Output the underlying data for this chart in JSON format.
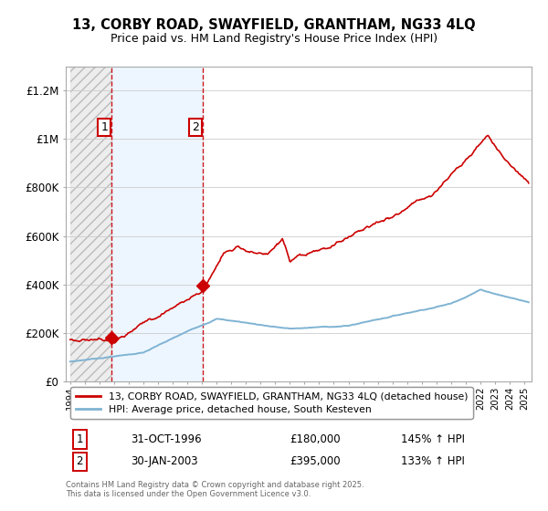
{
  "title": "13, CORBY ROAD, SWAYFIELD, GRANTHAM, NG33 4LQ",
  "subtitle": "Price paid vs. HM Land Registry's House Price Index (HPI)",
  "ylim": [
    0,
    1300000
  ],
  "xlim_start": 1994,
  "xlim_end": 2025.5,
  "yticks": [
    0,
    200000,
    400000,
    600000,
    800000,
    1000000,
    1200000
  ],
  "ytick_labels": [
    "£0",
    "£200K",
    "£400K",
    "£600K",
    "£800K",
    "£1M",
    "£1.2M"
  ],
  "sale1_year": 1996.83,
  "sale1_price": 180000,
  "sale1_label": "1",
  "sale1_date": "31-OCT-1996",
  "sale1_pct": "145% ↑ HPI",
  "sale2_year": 2003.08,
  "sale2_price": 395000,
  "sale2_label": "2",
  "sale2_date": "30-JAN-2003",
  "sale2_pct": "133% ↑ HPI",
  "red_color": "#cc0000",
  "blue_color": "#7fb3d3",
  "hatch_color": "#bbbbbb",
  "legend_label_red": "13, CORBY ROAD, SWAYFIELD, GRANTHAM, NG33 4LQ (detached house)",
  "legend_label_blue": "HPI: Average price, detached house, South Kesteven",
  "copyright_text": "Contains HM Land Registry data © Crown copyright and database right 2025.\nThis data is licensed under the Open Government Licence v3.0.",
  "bg_color": "#ffffff",
  "grid_color": "#cccccc"
}
